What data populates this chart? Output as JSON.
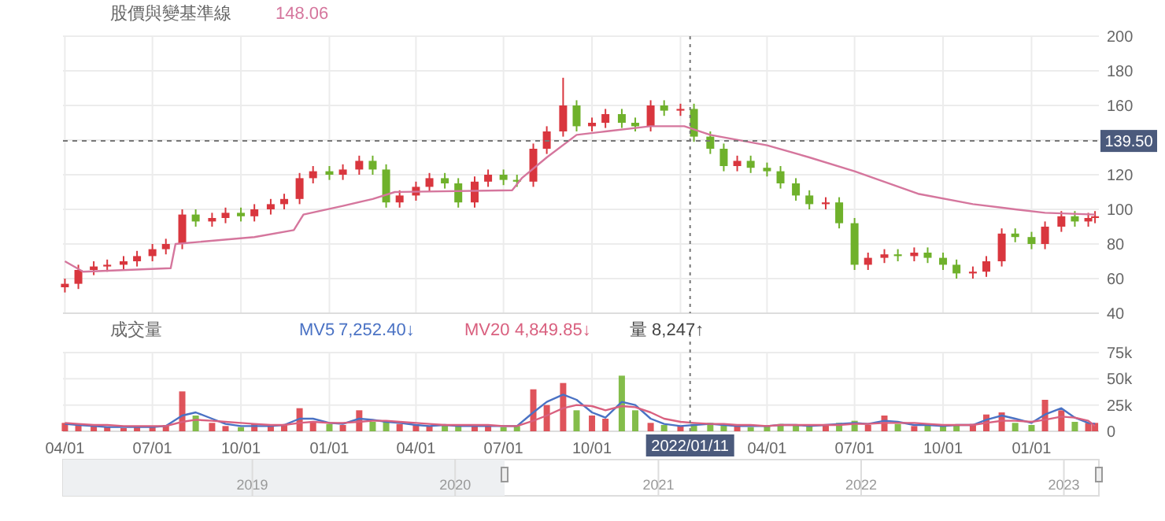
{
  "chart_data": [
    {
      "type": "candlestick",
      "title": "股價與變基準線",
      "annotations": [
        "148.06"
      ],
      "x": [
        "2020-04-01",
        "2020-04-15",
        "2020-05-01",
        "2020-05-15",
        "2020-06-01",
        "2020-06-15",
        "2020-07-01",
        "2020-07-15",
        "2020-08-01",
        "2020-08-15",
        "2020-09-01",
        "2020-09-15",
        "2020-10-01",
        "2020-10-15",
        "2020-11-01",
        "2020-11-15",
        "2020-12-01",
        "2020-12-15",
        "2021-01-01",
        "2021-01-15",
        "2021-02-01",
        "2021-02-15",
        "2021-03-01",
        "2021-03-15",
        "2021-04-01",
        "2021-04-15",
        "2021-05-01",
        "2021-05-15",
        "2021-06-01",
        "2021-06-15",
        "2021-07-01",
        "2021-07-15",
        "2021-08-01",
        "2021-08-15",
        "2021-09-01",
        "2021-09-15",
        "2021-10-01",
        "2021-10-15",
        "2021-11-01",
        "2021-11-15",
        "2021-12-01",
        "2021-12-15",
        "2022-01-01",
        "2022-01-15",
        "2022-02-01",
        "2022-02-15",
        "2022-03-01",
        "2022-03-15",
        "2022-04-01",
        "2022-04-15",
        "2022-05-01",
        "2022-05-15",
        "2022-06-01",
        "2022-06-15",
        "2022-07-01",
        "2022-07-15",
        "2022-08-01",
        "2022-08-15",
        "2022-09-01",
        "2022-09-15",
        "2022-10-01",
        "2022-10-15",
        "2022-11-01",
        "2022-11-15",
        "2022-12-01",
        "2022-12-15",
        "2023-01-01",
        "2023-01-15",
        "2023-02-01",
        "2023-02-15",
        "2023-03-01",
        "2023-03-08"
      ],
      "ohlc": [
        [
          55,
          60,
          52,
          57
        ],
        [
          57,
          68,
          54,
          65
        ],
        [
          65,
          70,
          62,
          67
        ],
        [
          67,
          71,
          64,
          68
        ],
        [
          68,
          73,
          65,
          70
        ],
        [
          70,
          76,
          67,
          73
        ],
        [
          73,
          80,
          70,
          77
        ],
        [
          77,
          83,
          74,
          80
        ],
        [
          80,
          100,
          77,
          97
        ],
        [
          97,
          100,
          90,
          93
        ],
        [
          93,
          98,
          90,
          95
        ],
        [
          95,
          101,
          92,
          98
        ],
        [
          98,
          101,
          93,
          96
        ],
        [
          96,
          103,
          93,
          100
        ],
        [
          100,
          106,
          97,
          103
        ],
        [
          103,
          109,
          100,
          106
        ],
        [
          106,
          121,
          103,
          118
        ],
        [
          118,
          125,
          115,
          122
        ],
        [
          122,
          125,
          117,
          120
        ],
        [
          120,
          126,
          117,
          123
        ],
        [
          123,
          131,
          120,
          128
        ],
        [
          128,
          131,
          120,
          123
        ],
        [
          123,
          126,
          101,
          104
        ],
        [
          104,
          111,
          101,
          108
        ],
        [
          108,
          116,
          105,
          113
        ],
        [
          113,
          121,
          110,
          118
        ],
        [
          118,
          121,
          112,
          115
        ],
        [
          115,
          118,
          101,
          104
        ],
        [
          104,
          119,
          101,
          116
        ],
        [
          116,
          123,
          113,
          120
        ],
        [
          120,
          123,
          114,
          117
        ],
        [
          117,
          120,
          113,
          116
        ],
        [
          116,
          138,
          113,
          135
        ],
        [
          135,
          148,
          132,
          145
        ],
        [
          145,
          176,
          142,
          160
        ],
        [
          160,
          163,
          145,
          148
        ],
        [
          148,
          153,
          145,
          150
        ],
        [
          150,
          158,
          147,
          155
        ],
        [
          155,
          158,
          147,
          150
        ],
        [
          150,
          153,
          145,
          148
        ],
        [
          148,
          163,
          145,
          160
        ],
        [
          160,
          163,
          154,
          157
        ],
        [
          157,
          161,
          154,
          158
        ],
        [
          158,
          161,
          139,
          142
        ],
        [
          142,
          145,
          132,
          135
        ],
        [
          135,
          138,
          122,
          125
        ],
        [
          125,
          131,
          122,
          128
        ],
        [
          128,
          131,
          121,
          124
        ],
        [
          124,
          127,
          119,
          122
        ],
        [
          122,
          125,
          112,
          115
        ],
        [
          115,
          118,
          105,
          108
        ],
        [
          108,
          111,
          100,
          103
        ],
        [
          103,
          107,
          100,
          104
        ],
        [
          104,
          107,
          89,
          92
        ],
        [
          92,
          95,
          65,
          68
        ],
        [
          68,
          75,
          65,
          72
        ],
        [
          72,
          77,
          69,
          74
        ],
        [
          74,
          77,
          70,
          73
        ],
        [
          73,
          78,
          70,
          75
        ],
        [
          75,
          78,
          69,
          72
        ],
        [
          72,
          75,
          65,
          68
        ],
        [
          68,
          71,
          60,
          63
        ],
        [
          63,
          67,
          60,
          64
        ],
        [
          64,
          73,
          61,
          70
        ],
        [
          70,
          89,
          67,
          86
        ],
        [
          86,
          89,
          81,
          84
        ],
        [
          84,
          87,
          77,
          80
        ],
        [
          80,
          93,
          77,
          90
        ],
        [
          90,
          99,
          87,
          96
        ],
        [
          96,
          99,
          90,
          93
        ],
        [
          93,
          98,
          90,
          95
        ],
        [
          95,
          99,
          92,
          96
        ]
      ],
      "colors": [
        "#d9363e",
        "#d9363e",
        "#d9363e",
        "#d9363e",
        "#d9363e",
        "#d9363e",
        "#d9363e",
        "#d9363e",
        "#d9363e",
        "#6fb12b",
        "#d9363e",
        "#d9363e",
        "#6fb12b",
        "#d9363e",
        "#d9363e",
        "#d9363e",
        "#d9363e",
        "#d9363e",
        "#6fb12b",
        "#d9363e",
        "#d9363e",
        "#6fb12b",
        "#6fb12b",
        "#d9363e",
        "#d9363e",
        "#d9363e",
        "#6fb12b",
        "#6fb12b",
        "#d9363e",
        "#d9363e",
        "#6fb12b",
        "#6fb12b",
        "#d9363e",
        "#d9363e",
        "#d9363e",
        "#6fb12b",
        "#d9363e",
        "#d9363e",
        "#6fb12b",
        "#6fb12b",
        "#d9363e",
        "#6fb12b",
        "#d9363e",
        "#6fb12b",
        "#6fb12b",
        "#6fb12b",
        "#d9363e",
        "#6fb12b",
        "#6fb12b",
        "#6fb12b",
        "#6fb12b",
        "#6fb12b",
        "#d9363e",
        "#6fb12b",
        "#6fb12b",
        "#d9363e",
        "#d9363e",
        "#6fb12b",
        "#d9363e",
        "#6fb12b",
        "#6fb12b",
        "#6fb12b",
        "#d9363e",
        "#d9363e",
        "#d9363e",
        "#6fb12b",
        "#6fb12b",
        "#d9363e",
        "#d9363e",
        "#6fb12b",
        "#d9363e",
        "#d9363e"
      ],
      "series": [
        {
          "type": "line",
          "color": "#d5769d",
          "x": [
            "2020-04-01",
            "2020-04-20",
            "2020-07-20",
            "2020-07-25",
            "2020-10-15",
            "2020-11-25",
            "2020-12-05",
            "2021-01-15",
            "2021-02-15",
            "2021-03-10",
            "2021-07-10",
            "2021-07-20",
            "2021-08-15",
            "2021-09-15",
            "2021-10-15",
            "2021-12-01",
            "2022-01-05",
            "2022-02-01",
            "2022-04-01",
            "2022-05-15",
            "2022-07-01",
            "2022-09-05",
            "2022-11-01",
            "2022-12-15",
            "2023-01-15",
            "2023-03-08"
          ],
          "values": [
            70,
            64,
            66,
            80,
            84,
            88,
            97,
            102,
            106,
            110,
            111,
            118,
            130,
            143,
            145,
            148,
            148,
            143,
            137,
            130,
            122,
            109,
            103,
            100,
            98,
            97
          ]
        }
      ],
      "xlim": [
        "2020-03-30",
        "2023-03-12"
      ],
      "xticks": [
        {
          "value": "2020-04-01",
          "label": null
        },
        {
          "value": "2020-07-01",
          "label": null
        },
        {
          "value": "2020-10-01",
          "label": null
        },
        {
          "value": "2021-01-01",
          "label": null
        },
        {
          "value": "2021-04-01",
          "label": null
        },
        {
          "value": "2021-07-01",
          "label": null
        },
        {
          "value": "2021-10-01",
          "label": null
        },
        {
          "value": "2022-01-01",
          "label": null
        },
        {
          "value": "2022-04-01",
          "label": null
        },
        {
          "value": "2022-07-01",
          "label": null
        },
        {
          "value": "2022-10-01",
          "label": null
        },
        {
          "value": "2023-01-01",
          "label": null
        }
      ],
      "ylim": [
        40,
        200
      ],
      "yticks": [
        40,
        60,
        80,
        100,
        120,
        {
          "value": 140,
          "label": null
        },
        160,
        180,
        200
      ],
      "tick_labels": "y",
      "grid": true,
      "ref_lines": [
        {
          "axis": "y",
          "value": 139.5,
          "label": "139.50"
        },
        {
          "axis": "x",
          "value": "2022-01-11"
        }
      ]
    },
    {
      "type": "bar",
      "title": "成交量",
      "legend": "top left",
      "annotations": [
        "7,252.40↓",
        "4,849.85↓",
        "量 8,247↑"
      ],
      "x": [
        "2020-04-01",
        "2020-04-15",
        "2020-05-01",
        "2020-05-15",
        "2020-06-01",
        "2020-06-15",
        "2020-07-01",
        "2020-07-15",
        "2020-08-01",
        "2020-08-15",
        "2020-09-01",
        "2020-09-15",
        "2020-10-01",
        "2020-10-15",
        "2020-11-01",
        "2020-11-15",
        "2020-12-01",
        "2020-12-15",
        "2021-01-01",
        "2021-01-15",
        "2021-02-01",
        "2021-02-15",
        "2021-03-01",
        "2021-03-15",
        "2021-04-01",
        "2021-04-15",
        "2021-05-01",
        "2021-05-15",
        "2021-06-01",
        "2021-06-15",
        "2021-07-01",
        "2021-07-15",
        "2021-08-01",
        "2021-08-15",
        "2021-09-01",
        "2021-09-15",
        "2021-10-01",
        "2021-10-15",
        "2021-11-01",
        "2021-11-15",
        "2021-12-01",
        "2021-12-15",
        "2022-01-01",
        "2022-01-15",
        "2022-02-01",
        "2022-02-15",
        "2022-03-01",
        "2022-03-15",
        "2022-04-01",
        "2022-04-15",
        "2022-05-01",
        "2022-05-15",
        "2022-06-01",
        "2022-06-15",
        "2022-07-01",
        "2022-07-15",
        "2022-08-01",
        "2022-08-15",
        "2022-09-01",
        "2022-09-15",
        "2022-10-01",
        "2022-10-15",
        "2022-11-01",
        "2022-11-15",
        "2022-12-01",
        "2022-12-15",
        "2023-01-01",
        "2023-01-15",
        "2023-02-01",
        "2023-02-15",
        "2023-03-01",
        "2023-03-08"
      ],
      "values": [
        8000,
        6000,
        5000,
        4000,
        3000,
        4000,
        5000,
        6000,
        38000,
        15000,
        8000,
        5000,
        4000,
        7000,
        5000,
        6000,
        22000,
        9000,
        7000,
        6000,
        20000,
        9000,
        10000,
        7000,
        6000,
        5000,
        6000,
        5000,
        6000,
        5000,
        4000,
        5000,
        40000,
        25000,
        46000,
        20000,
        15000,
        12000,
        53000,
        20000,
        8000,
        6000,
        5000,
        7000,
        8000,
        6000,
        5000,
        4000,
        5000,
        7000,
        6000,
        5000,
        6000,
        8000,
        10000,
        6000,
        15000,
        7000,
        5000,
        6000,
        5000,
        6000,
        7000,
        16000,
        18000,
        8000,
        6000,
        30000,
        20000,
        9000,
        8000,
        8000
      ],
      "colors": [
        "#d9363e",
        "#d9363e",
        "#d9363e",
        "#d9363e",
        "#d9363e",
        "#d9363e",
        "#d9363e",
        "#d9363e",
        "#d9363e",
        "#6fb12b",
        "#d9363e",
        "#d9363e",
        "#6fb12b",
        "#d9363e",
        "#d9363e",
        "#d9363e",
        "#d9363e",
        "#d9363e",
        "#6fb12b",
        "#d9363e",
        "#d9363e",
        "#6fb12b",
        "#6fb12b",
        "#d9363e",
        "#d9363e",
        "#d9363e",
        "#6fb12b",
        "#6fb12b",
        "#d9363e",
        "#d9363e",
        "#6fb12b",
        "#6fb12b",
        "#d9363e",
        "#d9363e",
        "#d9363e",
        "#6fb12b",
        "#d9363e",
        "#d9363e",
        "#6fb12b",
        "#6fb12b",
        "#d9363e",
        "#6fb12b",
        "#d9363e",
        "#6fb12b",
        "#6fb12b",
        "#6fb12b",
        "#d9363e",
        "#6fb12b",
        "#6fb12b",
        "#6fb12b",
        "#6fb12b",
        "#6fb12b",
        "#d9363e",
        "#6fb12b",
        "#6fb12b",
        "#d9363e",
        "#d9363e",
        "#6fb12b",
        "#d9363e",
        "#6fb12b",
        "#6fb12b",
        "#6fb12b",
        "#d9363e",
        "#d9363e",
        "#d9363e",
        "#6fb12b",
        "#6fb12b",
        "#d9363e",
        "#d9363e",
        "#6fb12b",
        "#d9363e",
        "#d9363e"
      ],
      "series": [
        {
          "type": "line",
          "name": "MV5",
          "color": "#4a72c4",
          "values": [
            7000,
            6000,
            5000,
            4000,
            4000,
            4000,
            4000,
            5000,
            15000,
            18000,
            12000,
            7000,
            5000,
            5000,
            5000,
            6000,
            12000,
            12000,
            8000,
            7000,
            12000,
            11000,
            9000,
            8000,
            6000,
            5000,
            6000,
            5000,
            5000,
            5000,
            5000,
            5000,
            18000,
            28000,
            35000,
            30000,
            18000,
            13000,
            28000,
            25000,
            12000,
            7000,
            5000,
            6000,
            7000,
            6000,
            5000,
            5000,
            5000,
            6000,
            6000,
            5000,
            6000,
            7000,
            8000,
            7000,
            10000,
            9000,
            6000,
            6000,
            5000,
            6000,
            6000,
            11000,
            15000,
            12000,
            8000,
            16000,
            22000,
            13000,
            8000,
            7000
          ]
        },
        {
          "type": "line",
          "name": "MV20",
          "color": "#d9607f",
          "values": [
            8000,
            7000,
            6000,
            6000,
            5000,
            5000,
            5000,
            5000,
            9000,
            11000,
            10000,
            9000,
            8000,
            7000,
            6000,
            6000,
            8000,
            9000,
            8000,
            8000,
            9000,
            10000,
            10000,
            9000,
            8000,
            7000,
            6000,
            6000,
            6000,
            6000,
            5000,
            5000,
            10000,
            15000,
            22000,
            25000,
            24000,
            20000,
            24000,
            23000,
            18000,
            12000,
            9000,
            8000,
            7000,
            7000,
            6000,
            6000,
            5000,
            6000,
            6000,
            6000,
            6000,
            6000,
            7000,
            7000,
            8000,
            8000,
            8000,
            7000,
            6000,
            6000,
            6000,
            8000,
            10000,
            10000,
            9000,
            11000,
            14000,
            13000,
            10000,
            5000
          ]
        }
      ],
      "xlim": [
        "2020-03-30",
        "2023-03-12"
      ],
      "xticks": [
        {
          "value": "2020-04-01",
          "label": "04/01"
        },
        {
          "value": "2020-07-01",
          "label": "07/01"
        },
        {
          "value": "2020-10-01",
          "label": "10/01"
        },
        {
          "value": "2021-01-01",
          "label": "01/01"
        },
        {
          "value": "2021-04-01",
          "label": "04/01"
        },
        {
          "value": "2021-07-01",
          "label": "07/01"
        },
        {
          "value": "2021-10-01",
          "label": "10/01"
        },
        {
          "value": "2022-01-01",
          "label": null
        },
        {
          "value": "2022-04-01",
          "label": "04/01"
        },
        {
          "value": "2022-07-01",
          "label": "07/01"
        },
        {
          "value": "2022-10-01",
          "label": "10/01"
        },
        {
          "value": "2023-01-01",
          "label": "01/01"
        }
      ],
      "ylim": [
        0,
        75000
      ],
      "yticks": [
        0,
        {
          "value": 25000,
          "label": "25k"
        },
        {
          "value": 50000,
          "label": "50k"
        },
        {
          "value": 75000,
          "label": "75k"
        }
      ],
      "x2lim": [
        "2018-01-25",
        "2023-03-05"
      ],
      "x2ticks": [
        {
          "value": "2019-01-01",
          "label": "2019"
        },
        {
          "value": "2020-01-01",
          "label": "2020"
        },
        {
          "value": "2021-01-01",
          "label": "2021"
        },
        {
          "value": "2022-01-01",
          "label": "2022"
        },
        {
          "value": "2023-01-01",
          "label": "2023"
        }
      ],
      "grid": true,
      "ref_lines": [
        {
          "axis": "x",
          "value": "2022-01-11",
          "label": "2022/01/11"
        }
      ]
    }
  ]
}
